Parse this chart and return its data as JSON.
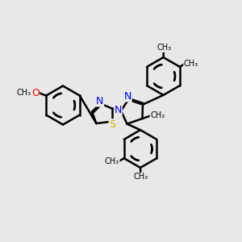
{
  "background_color": "#e8e8e8",
  "bond_color": "#000000",
  "bond_width": 1.8,
  "atom_colors": {
    "N": "#0000ff",
    "S": "#ccbb00",
    "O": "#ff0000",
    "C": "#000000"
  },
  "font_size": 8.5,
  "fig_width": 3.0,
  "fig_height": 3.0,
  "dpi": 100,
  "xlim": [
    0,
    10
  ],
  "ylim": [
    0,
    10
  ]
}
